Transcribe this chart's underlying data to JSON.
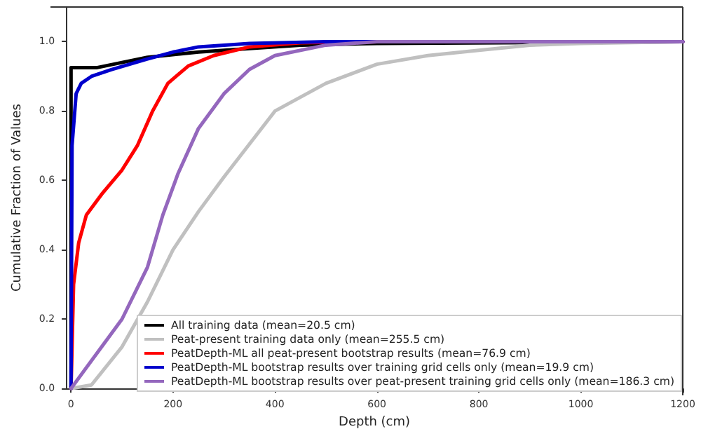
{
  "chart_data": {
    "type": "line",
    "xlabel": "Depth (cm)",
    "ylabel": "Cumulative Fraction of Values",
    "xlim": [
      -10,
      1200
    ],
    "xticks": [
      0,
      200,
      400,
      600,
      800,
      1000,
      1200
    ],
    "ylim": [
      0,
      1.1
    ],
    "yticks": [
      {
        "value": 0,
        "label": "0.0"
      },
      0.2,
      0.4,
      0.6,
      0.8,
      {
        "value": 1,
        "label": "1.0"
      }
    ],
    "grid": false,
    "legend": "bottom right",
    "marker": "none",
    "line_style": "solid",
    "series": [
      {
        "name": "All training data (mean=20.5 cm)",
        "color": "#000000",
        "x": [
          0,
          0,
          50,
          100,
          150,
          250,
          350,
          450,
          600,
          1200
        ],
        "values": [
          0,
          0.925,
          0.925,
          0.94,
          0.955,
          0.97,
          0.98,
          0.99,
          0.995,
          1.0
        ]
      },
      {
        "name": "Peat-present training data only (mean=255.5 cm)",
        "color": "#c0c0c0",
        "x": [
          0,
          40,
          100,
          150,
          200,
          250,
          300,
          400,
          500,
          600,
          700,
          800,
          900,
          1000,
          1200
        ],
        "values": [
          0,
          0.01,
          0.12,
          0.25,
          0.4,
          0.51,
          0.61,
          0.8,
          0.88,
          0.935,
          0.96,
          0.975,
          0.99,
          0.995,
          1.0
        ]
      },
      {
        "name": "PeatDepth-ML all peat-present bootstrap results (mean=76.9 cm)",
        "color": "#ff0000",
        "x": [
          0,
          5,
          15,
          30,
          60,
          100,
          130,
          160,
          190,
          230,
          280,
          350,
          450,
          600,
          1200
        ],
        "values": [
          0,
          0.3,
          0.42,
          0.5,
          0.56,
          0.63,
          0.7,
          0.8,
          0.88,
          0.93,
          0.96,
          0.985,
          0.997,
          1.0,
          1.0
        ]
      },
      {
        "name": "PeatDepth-ML bootstrap results over training grid cells only (mean=19.9 cm)",
        "color": "#0000cc",
        "x": [
          0,
          2,
          10,
          20,
          40,
          80,
          150,
          200,
          250,
          350,
          500,
          1200
        ],
        "values": [
          0,
          0.7,
          0.85,
          0.88,
          0.9,
          0.92,
          0.95,
          0.97,
          0.985,
          0.995,
          1.0,
          1.0
        ]
      },
      {
        "name": "PeatDepth-ML bootstrap results over peat-present training grid cells only (mean=186.3 cm)",
        "color": "#9467bd",
        "x": [
          0,
          50,
          100,
          150,
          180,
          210,
          250,
          300,
          350,
          400,
          500,
          600,
          1200
        ],
        "values": [
          0,
          0.1,
          0.2,
          0.35,
          0.5,
          0.62,
          0.75,
          0.85,
          0.92,
          0.96,
          0.99,
          1.0,
          1.0
        ]
      }
    ]
  }
}
